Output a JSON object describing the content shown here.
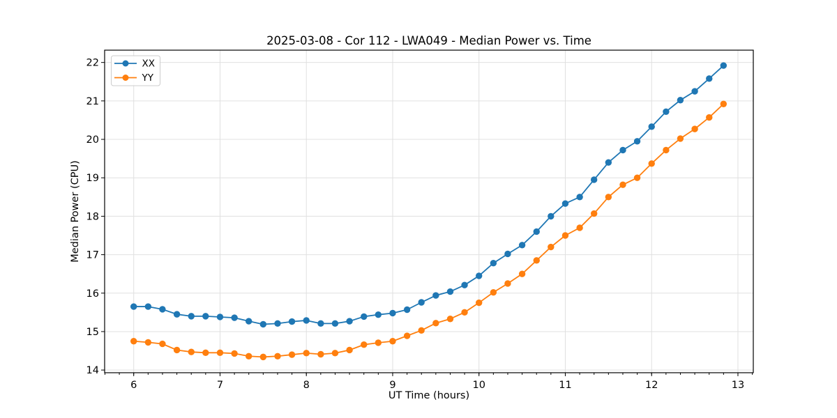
{
  "chart_data": {
    "type": "line",
    "title": "2025-03-08 - Cor 112 - LWA049 - Median Power vs. Time",
    "xlabel": "UT Time (hours)",
    "ylabel": "Median Power (CPU)",
    "xlim": [
      5.663,
      13.178
    ],
    "ylim": [
      13.93,
      22.32
    ],
    "xticks": [
      6,
      7,
      8,
      9,
      10,
      11,
      12,
      13
    ],
    "yticks": [
      14,
      15,
      16,
      17,
      18,
      19,
      20,
      21,
      22
    ],
    "x_minor_step": 0.1666667,
    "grid": true,
    "legend_position": "upper-left",
    "marker": "circle",
    "x": [
      6.0,
      6.167,
      6.333,
      6.5,
      6.667,
      6.833,
      7.0,
      7.167,
      7.333,
      7.5,
      7.667,
      7.833,
      8.0,
      8.167,
      8.333,
      8.5,
      8.667,
      8.833,
      9.0,
      9.167,
      9.333,
      9.5,
      9.667,
      9.833,
      10.0,
      10.167,
      10.333,
      10.5,
      10.667,
      10.833,
      11.0,
      11.167,
      11.333,
      11.5,
      11.667,
      11.833,
      12.0,
      12.167,
      12.333,
      12.5,
      12.667,
      12.833
    ],
    "series": [
      {
        "name": "XX",
        "color": "#1f77b4",
        "values": [
          15.65,
          15.65,
          15.58,
          15.45,
          15.4,
          15.4,
          15.38,
          15.36,
          15.27,
          15.19,
          15.21,
          15.26,
          15.29,
          15.21,
          15.21,
          15.27,
          15.39,
          15.44,
          15.48,
          15.57,
          15.76,
          15.94,
          16.04,
          16.21,
          16.45,
          16.78,
          17.02,
          17.25,
          17.6,
          18.0,
          18.33,
          18.5,
          18.95,
          19.4,
          19.72,
          19.95,
          20.33,
          20.72,
          21.02,
          21.25,
          21.58,
          21.92
        ]
      },
      {
        "name": "YY",
        "color": "#ff7f0e",
        "values": [
          14.75,
          14.72,
          14.68,
          14.52,
          14.47,
          14.45,
          14.45,
          14.43,
          14.36,
          14.34,
          14.36,
          14.4,
          14.44,
          14.41,
          14.44,
          14.52,
          14.66,
          14.71,
          14.75,
          14.89,
          15.03,
          15.22,
          15.33,
          15.5,
          15.75,
          16.02,
          16.25,
          16.5,
          16.85,
          17.2,
          17.5,
          17.7,
          18.07,
          18.5,
          18.82,
          19.0,
          19.37,
          19.72,
          20.02,
          20.27,
          20.57,
          20.92
        ]
      }
    ]
  }
}
